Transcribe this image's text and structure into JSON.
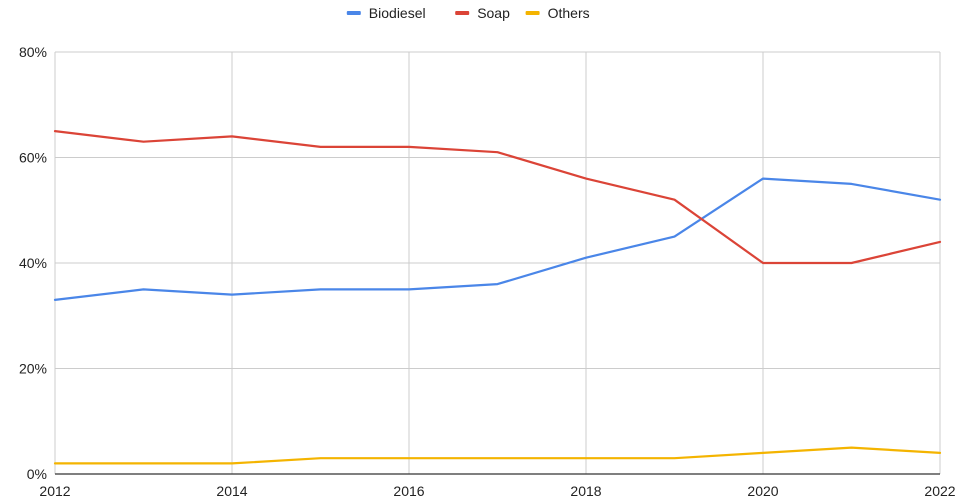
{
  "chart_data": {
    "type": "line",
    "title": "",
    "xlabel": "",
    "ylabel": "",
    "x": [
      2012,
      2013,
      2014,
      2015,
      2016,
      2017,
      2018,
      2019,
      2020,
      2021,
      2022
    ],
    "xlim": [
      2012,
      2022
    ],
    "ylim": [
      0,
      80
    ],
    "x_ticks": [
      "2012",
      "2014",
      "2016",
      "2018",
      "2020",
      "2022"
    ],
    "y_ticks": [
      "0%",
      "20%",
      "40%",
      "60%",
      "80%"
    ],
    "grid": true,
    "legend_position": "top-center",
    "series": [
      {
        "name": "Biodiesel",
        "color": "#4a86e8",
        "values": [
          33,
          35,
          34,
          35,
          35,
          36,
          41,
          45,
          56,
          55,
          52
        ]
      },
      {
        "name": "Soap",
        "color": "#db4437",
        "values": [
          65,
          63,
          64,
          62,
          62,
          61,
          56,
          52,
          40,
          40,
          44
        ]
      },
      {
        "name": "Others",
        "color": "#f4b400",
        "values": [
          2,
          2,
          2,
          3,
          3,
          3,
          3,
          3,
          4,
          5,
          4
        ]
      }
    ]
  }
}
